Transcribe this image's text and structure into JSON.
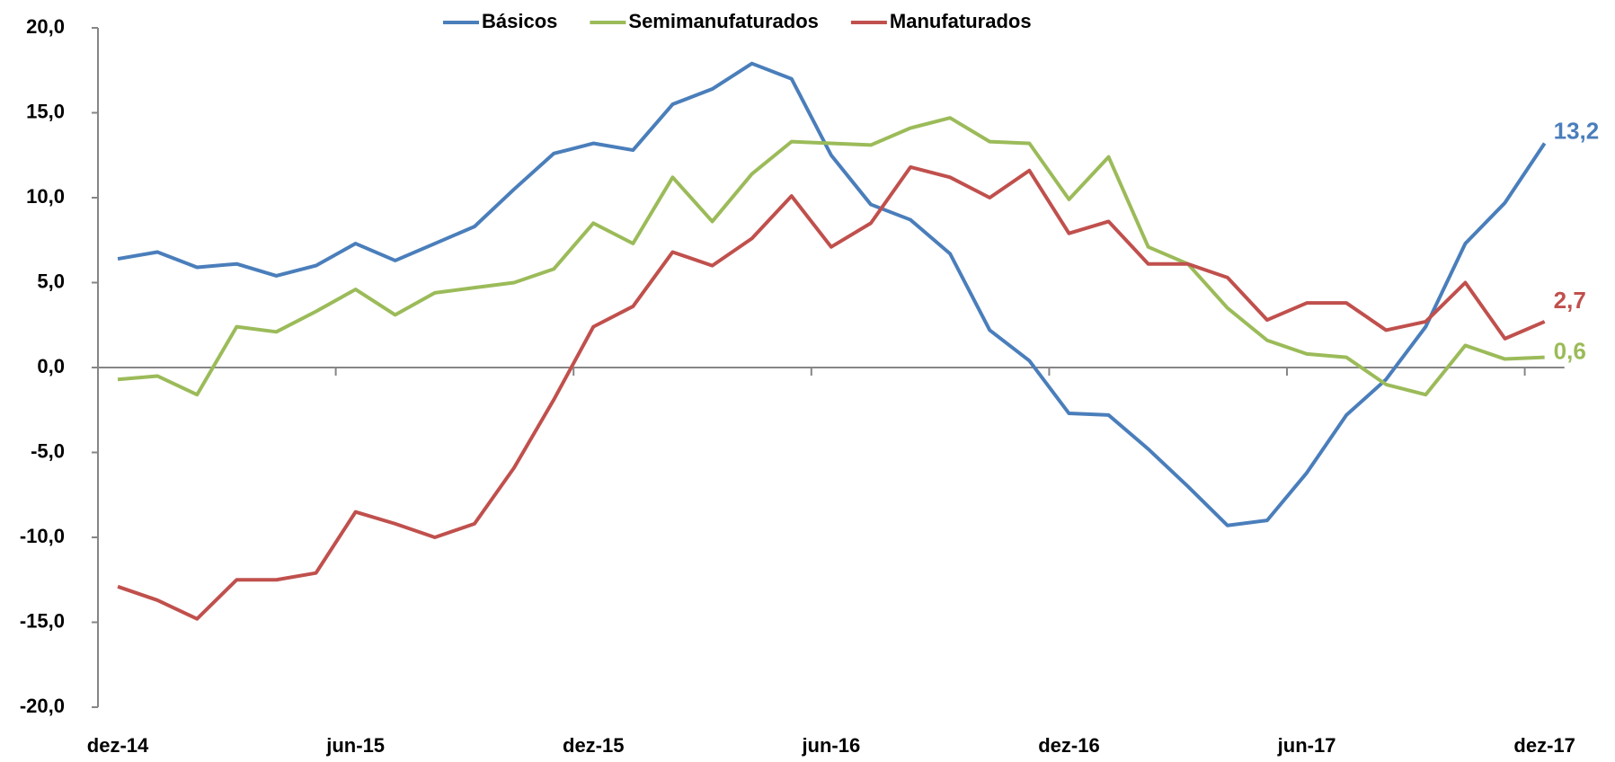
{
  "chart_data": {
    "type": "line",
    "categories": [
      "dez-14",
      null,
      null,
      null,
      null,
      null,
      "jun-15",
      null,
      null,
      null,
      null,
      null,
      "dez-15",
      null,
      null,
      null,
      null,
      null,
      "jun-16",
      null,
      null,
      null,
      null,
      null,
      "dez-16",
      null,
      null,
      null,
      null,
      null,
      "jun-17",
      null,
      null,
      null,
      null,
      null,
      "dez-17"
    ],
    "ylim": [
      -20,
      20
    ],
    "yticks": [
      {
        "value": -20,
        "label": "-20,0"
      },
      {
        "value": -15,
        "label": "-15,0"
      },
      {
        "value": -10,
        "label": "-10,0"
      },
      {
        "value": -5,
        "label": "-5,0"
      },
      {
        "value": 0,
        "label": "0,0"
      },
      {
        "value": 5,
        "label": "5,0"
      },
      {
        "value": 10,
        "label": "10,0"
      },
      {
        "value": 15,
        "label": "15,0"
      },
      {
        "value": 20,
        "label": "20,0"
      }
    ],
    "grid": false,
    "legend": "top",
    "series": [
      {
        "name": "Básicos",
        "color": "#4a7ebb",
        "values": [
          6.4,
          6.8,
          5.9,
          6.1,
          5.4,
          6.0,
          7.3,
          6.3,
          7.3,
          8.3,
          10.5,
          12.6,
          13.2,
          12.8,
          15.5,
          16.4,
          17.9,
          17.0,
          12.5,
          9.6,
          8.7,
          6.7,
          2.2,
          0.4,
          -2.7,
          -2.8,
          -4.8,
          -7.0,
          -9.3,
          -9.0,
          -6.2,
          -2.8,
          -0.7,
          2.4,
          7.3,
          9.7,
          13.2
        ],
        "value_labels": [
          null,
          null,
          null,
          null,
          null,
          null,
          null,
          null,
          null,
          null,
          null,
          null,
          null,
          null,
          null,
          null,
          null,
          null,
          null,
          null,
          null,
          null,
          null,
          null,
          null,
          null,
          null,
          null,
          null,
          null,
          null,
          null,
          null,
          null,
          null,
          null,
          "13,2"
        ]
      },
      {
        "name": "Semimanufaturados",
        "color": "#9bbb59",
        "values": [
          -0.7,
          -0.5,
          -1.6,
          2.4,
          2.1,
          3.3,
          4.6,
          3.1,
          4.4,
          4.7,
          5.0,
          5.8,
          8.5,
          7.3,
          11.2,
          8.6,
          11.4,
          13.3,
          13.2,
          13.1,
          14.1,
          14.7,
          13.3,
          13.2,
          9.9,
          12.4,
          7.1,
          6.1,
          3.5,
          1.6,
          0.8,
          0.6,
          -1.0,
          -1.6,
          1.3,
          0.5,
          0.6
        ],
        "value_labels": [
          null,
          null,
          null,
          null,
          null,
          null,
          null,
          null,
          null,
          null,
          null,
          null,
          null,
          null,
          null,
          null,
          null,
          null,
          null,
          null,
          null,
          null,
          null,
          null,
          null,
          null,
          null,
          null,
          null,
          null,
          null,
          null,
          null,
          null,
          null,
          null,
          "0,6"
        ]
      },
      {
        "name": "Manufaturados",
        "color": "#c0504d",
        "values": [
          -12.9,
          -13.7,
          -14.8,
          -12.5,
          -12.5,
          -12.1,
          -8.5,
          -9.2,
          -10.0,
          -9.2,
          -5.9,
          -1.9,
          2.4,
          3.6,
          6.8,
          6.0,
          7.6,
          10.1,
          7.1,
          8.5,
          11.8,
          11.2,
          10.0,
          11.6,
          7.9,
          8.6,
          6.1,
          6.1,
          5.3,
          2.8,
          3.8,
          3.8,
          2.2,
          2.7,
          5.0,
          1.7,
          2.7
        ],
        "value_labels": [
          null,
          null,
          null,
          null,
          null,
          null,
          null,
          null,
          null,
          null,
          null,
          null,
          null,
          null,
          null,
          null,
          null,
          null,
          null,
          null,
          null,
          null,
          null,
          null,
          null,
          null,
          null,
          null,
          null,
          null,
          null,
          null,
          null,
          null,
          null,
          null,
          "2,7"
        ]
      }
    ]
  }
}
